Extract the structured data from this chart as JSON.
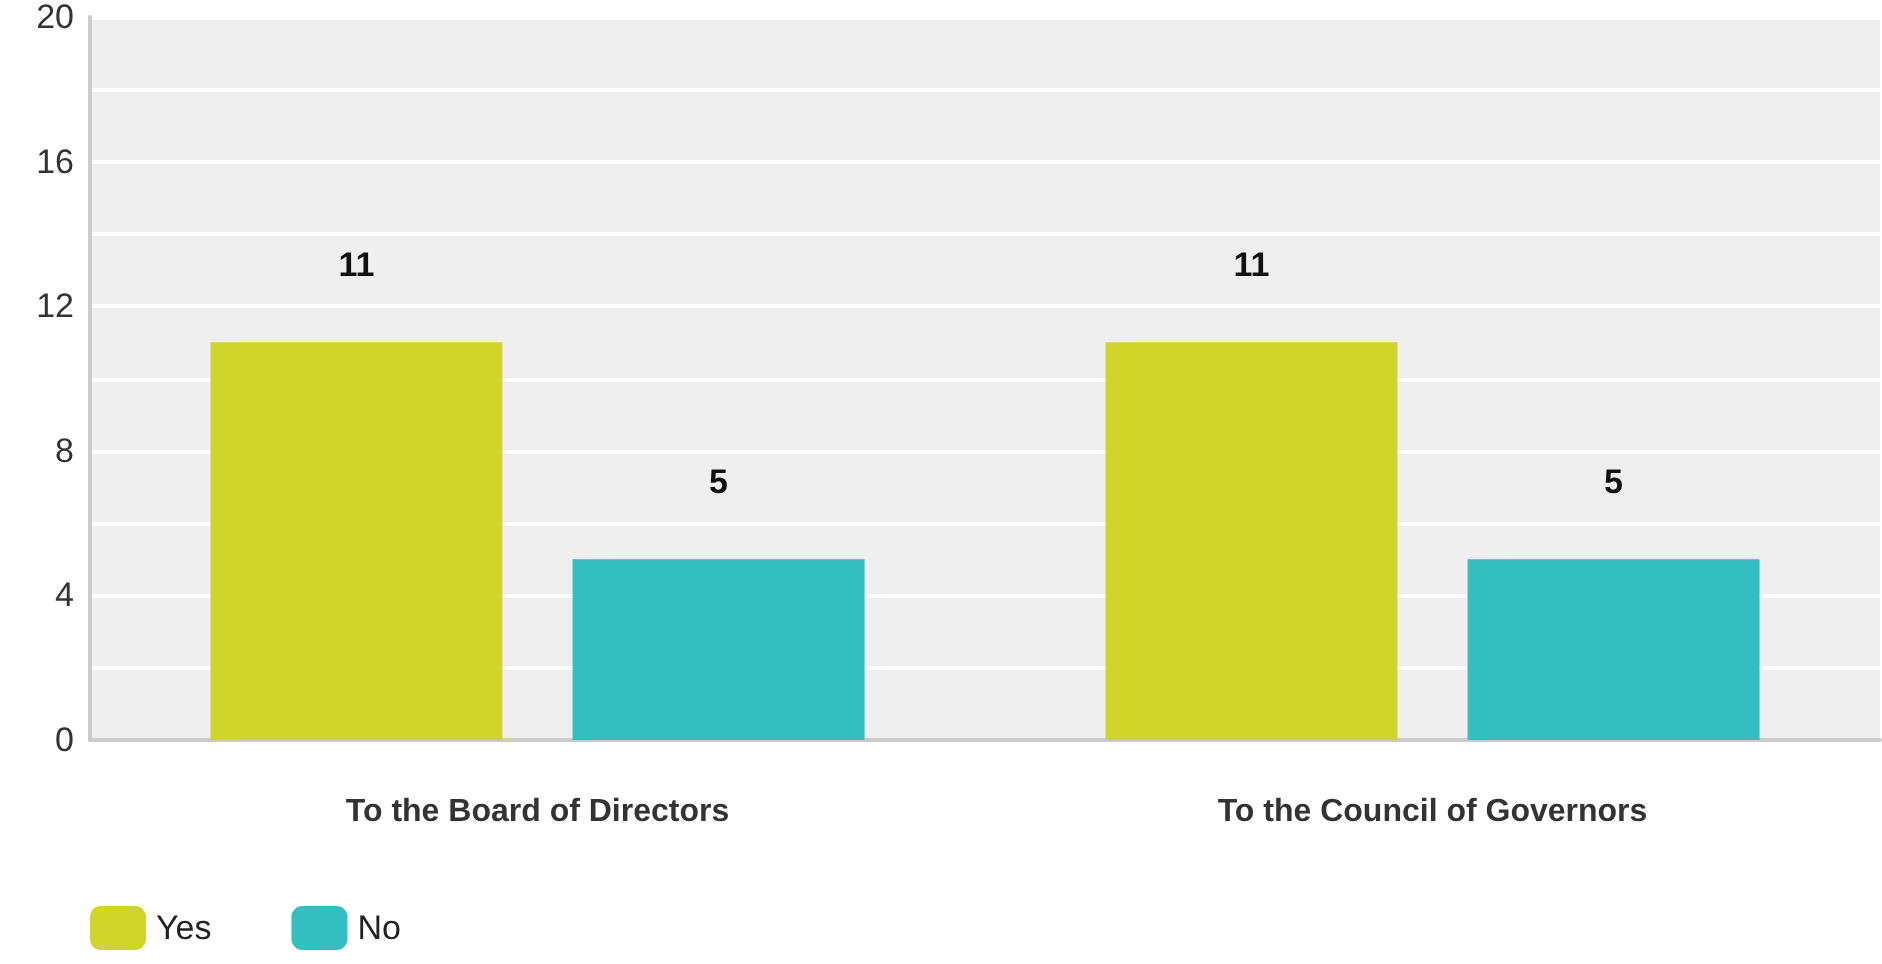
{
  "chart_data": {
    "type": "bar",
    "categories": [
      "To the Board of Directors",
      "To the Council of Governors"
    ],
    "series": [
      {
        "name": "Yes",
        "color": "#d0d52a",
        "values": [
          11,
          11
        ]
      },
      {
        "name": "No",
        "color": "#33bec0",
        "values": [
          5,
          5
        ]
      }
    ],
    "ylim": [
      0,
      20
    ],
    "yticks": [
      0,
      {
        "value": 2,
        "label": null
      },
      4,
      {
        "value": 6,
        "label": null
      },
      8,
      {
        "value": 10,
        "label": null
      },
      12,
      {
        "value": 14,
        "label": null
      },
      16,
      {
        "value": 18,
        "label": null
      },
      20
    ],
    "grid": "y",
    "legend": "bottom left",
    "data_labels": true
  }
}
